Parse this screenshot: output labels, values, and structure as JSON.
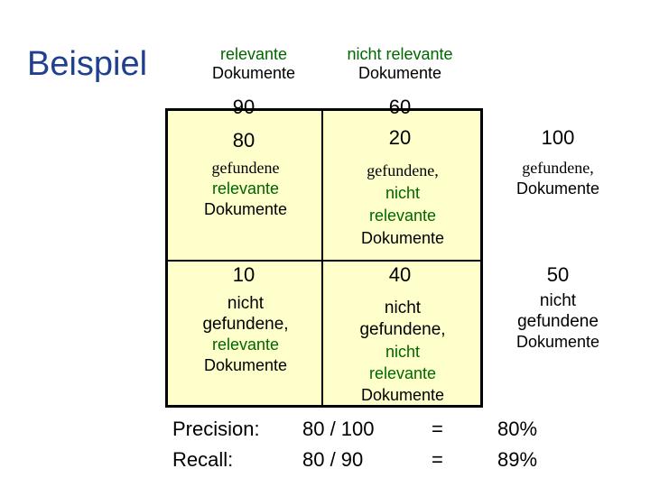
{
  "title": "Beispiel",
  "headers": {
    "col1_line1": "relevante",
    "col1_line2": "Dokumente",
    "col2_line1": "nicht relevante",
    "col2_line2": "Dokumente"
  },
  "column_totals": {
    "col1": "90",
    "col2": "60"
  },
  "cells": {
    "tp_count": "80",
    "tp_line1": "gefundene",
    "tp_line2": "relevante",
    "tp_line3": "Dokumente",
    "fp_count": "20",
    "fp_line1": "gefundene,",
    "fp_line2": "nicht",
    "fp_line3": "relevante",
    "fp_line4": "Dokumente",
    "fn_count": "10",
    "fn_line1": "nicht",
    "fn_line2": "gefundene,",
    "fn_line3": "relevante",
    "fn_line4": "Dokumente",
    "tn_count": "40",
    "tn_line1": "nicht",
    "tn_line2": "gefundene,",
    "tn_line3": "nicht",
    "tn_line4": "relevante",
    "tn_line5": "Dokumente"
  },
  "row_totals": {
    "row1_count": "100",
    "row1_line1": "gefundene,",
    "row1_line2": "Dokumente",
    "row2_count": "50",
    "row2_line1": "nicht",
    "row2_line2": "gefundene",
    "row2_line3": "Dokumente"
  },
  "metrics": {
    "precision_label": "Precision:",
    "precision_formula": "80 / 100",
    "precision_eq": "=",
    "precision_value": "80%",
    "recall_label": "Recall:",
    "recall_formula": "80 / 90",
    "recall_eq": "=",
    "recall_value": "89%"
  },
  "colors": {
    "title": "#1f3f8f",
    "matrix_bg": "#ffffcc",
    "green_text": "#006600"
  }
}
